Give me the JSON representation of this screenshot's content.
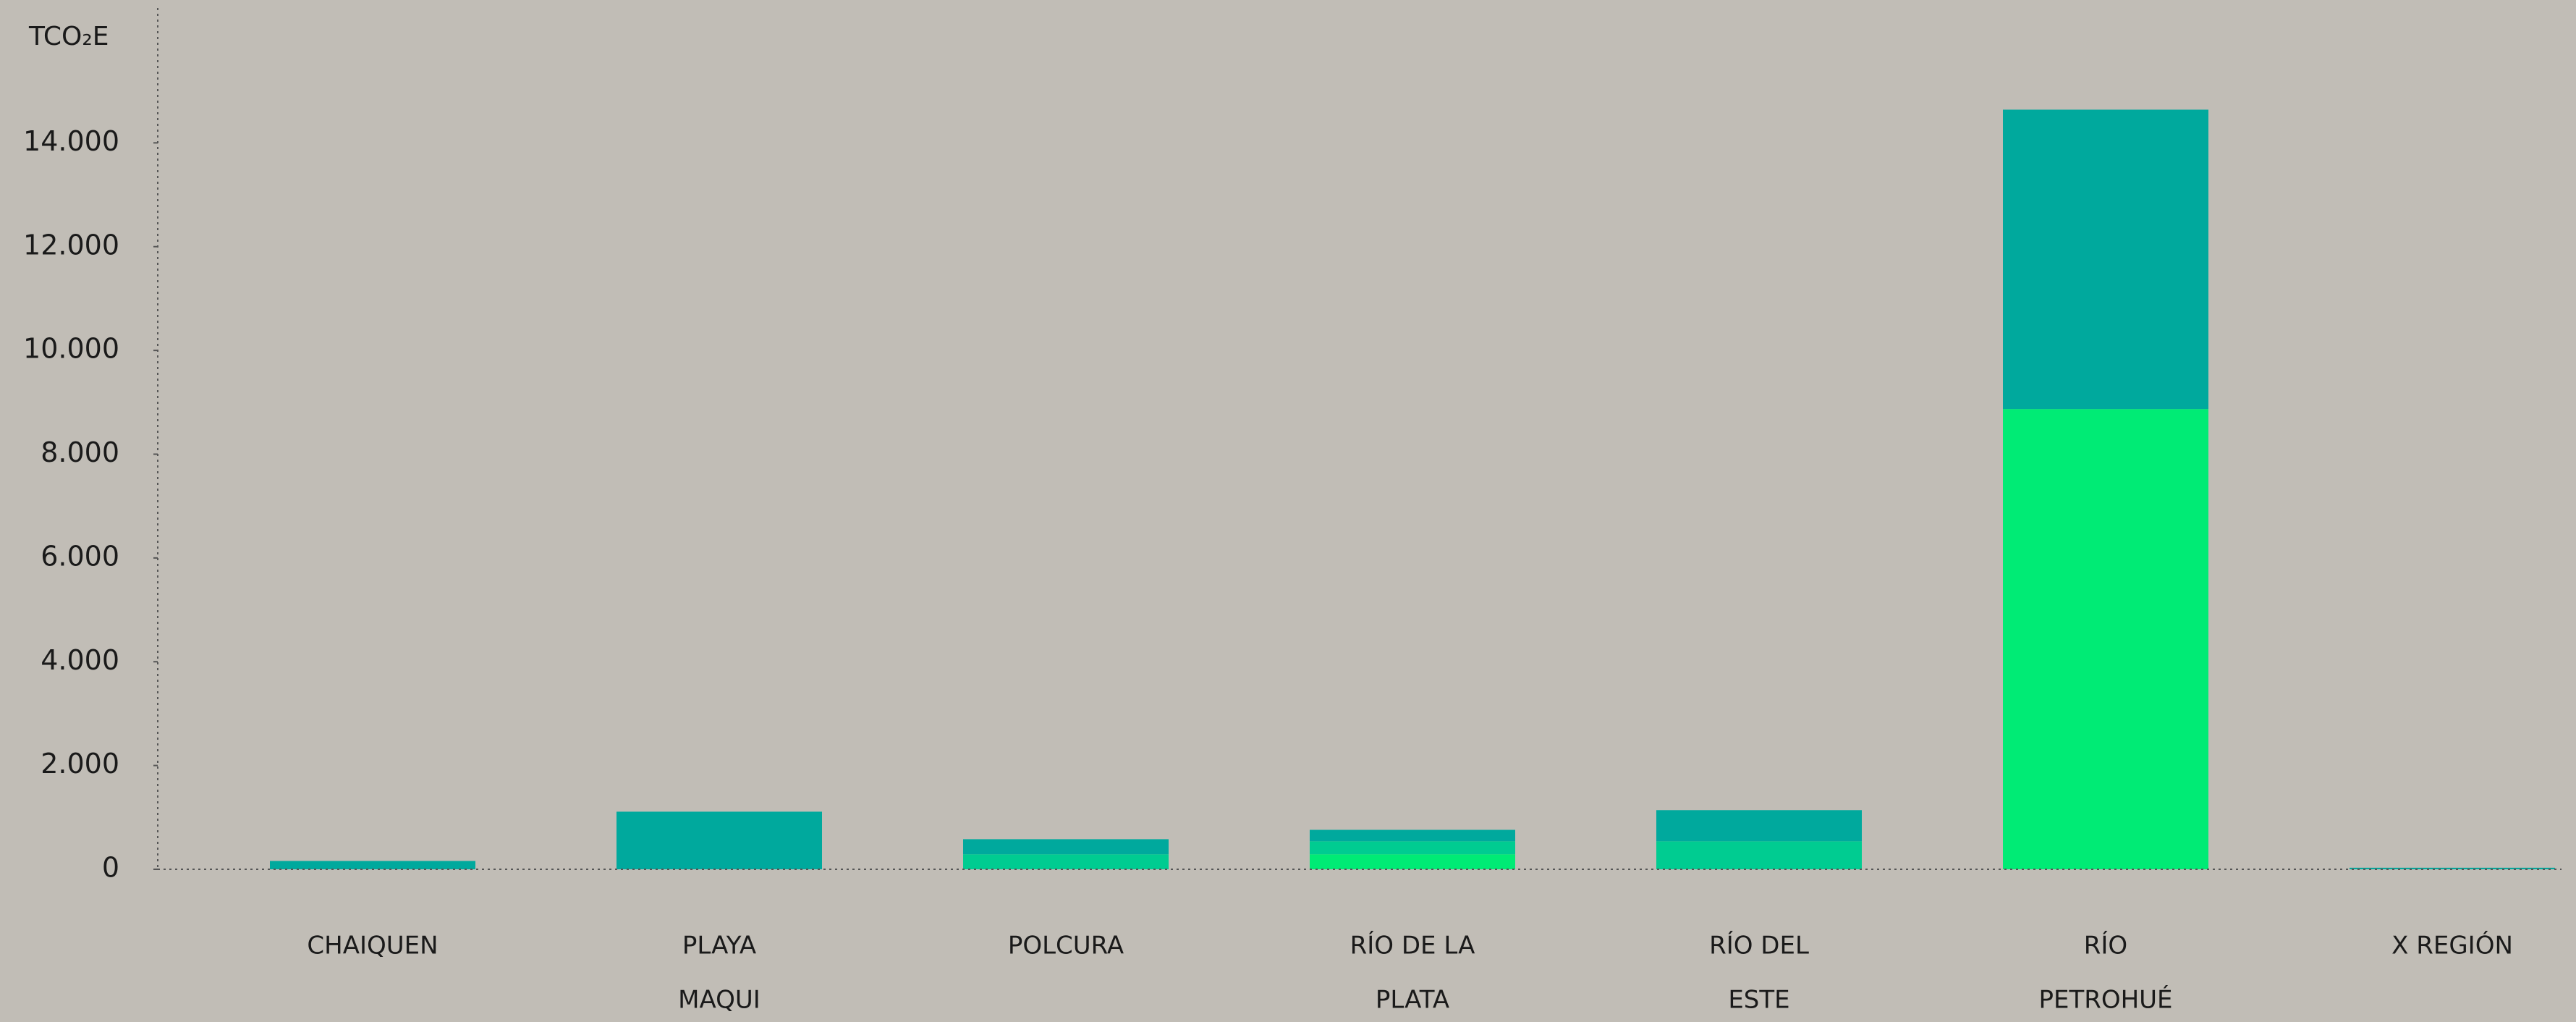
{
  "chart_data": {
    "type": "stacked_bar",
    "y_label": "TCO₂E",
    "categories": [
      [
        "CHAIQUEN"
      ],
      [
        "PLAYA",
        "MAQUI"
      ],
      [
        "POLCURA"
      ],
      [
        "RÍO DE LA",
        "PLATA"
      ],
      [
        "RÍO DEL",
        "ESTE"
      ],
      [
        "RÍO",
        "PETROHUÉ"
      ],
      [
        "X REGIÓN"
      ]
    ],
    "series": [
      {
        "color": "#00eb75",
        "values": [
          0,
          0,
          0,
          290,
          0,
          8870,
          0
        ]
      },
      {
        "color": "#00cc91",
        "values": [
          0,
          0,
          290,
          250,
          540,
          0,
          0
        ]
      },
      {
        "color": "#00a99d",
        "values": [
          160,
          1110,
          290,
          220,
          600,
          5770,
          30
        ]
      }
    ],
    "ylim": [
      0,
      16600
    ],
    "yticks": [
      0,
      {
        "value": 2000,
        "label": "2.000"
      },
      {
        "value": 4000,
        "label": "4.000"
      },
      {
        "value": 6000,
        "label": "6.000"
      },
      {
        "value": 8000,
        "label": "8.000"
      },
      {
        "value": 10000,
        "label": "10.000"
      },
      {
        "value": 12000,
        "label": "12.000"
      },
      {
        "value": 14000,
        "label": "14.000"
      }
    ],
    "grid": false
  }
}
